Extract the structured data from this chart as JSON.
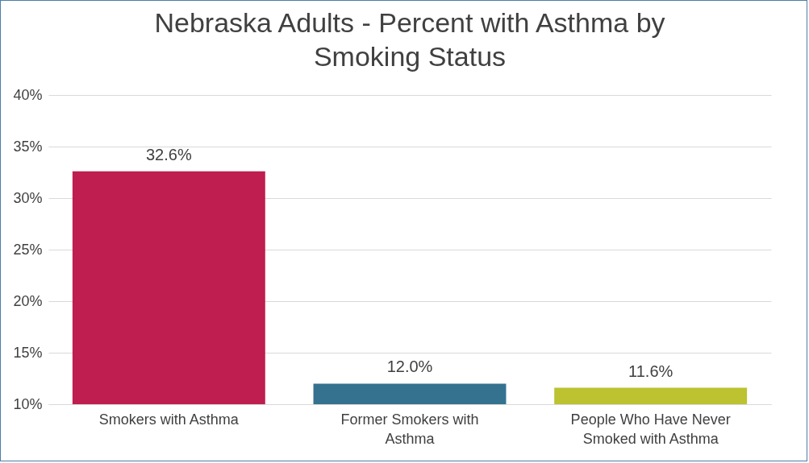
{
  "chart_data": {
    "type": "bar",
    "title": "Nebraska Adults - Percent with Asthma by Smoking Status",
    "categories": [
      "Smokers with Asthma",
      "Former Smokers with Asthma",
      "People Who Have Never Smoked with Asthma"
    ],
    "values": [
      32.6,
      12.0,
      11.6
    ],
    "value_labels": [
      "32.6%",
      "12.0%",
      "11.6%"
    ],
    "colors": [
      "#be1e50",
      "#347290",
      "#bcc230"
    ],
    "ylim": [
      10,
      40
    ],
    "yticks": [
      {
        "value": 10,
        "label": "10%"
      },
      {
        "value": 15,
        "label": "15%"
      },
      {
        "value": 20,
        "label": "20%"
      },
      {
        "value": 25,
        "label": "25%"
      },
      {
        "value": 30,
        "label": "30%"
      },
      {
        "value": 35,
        "label": "35%"
      },
      {
        "value": 40,
        "label": "40%"
      }
    ],
    "grid": "y",
    "legend": false
  }
}
